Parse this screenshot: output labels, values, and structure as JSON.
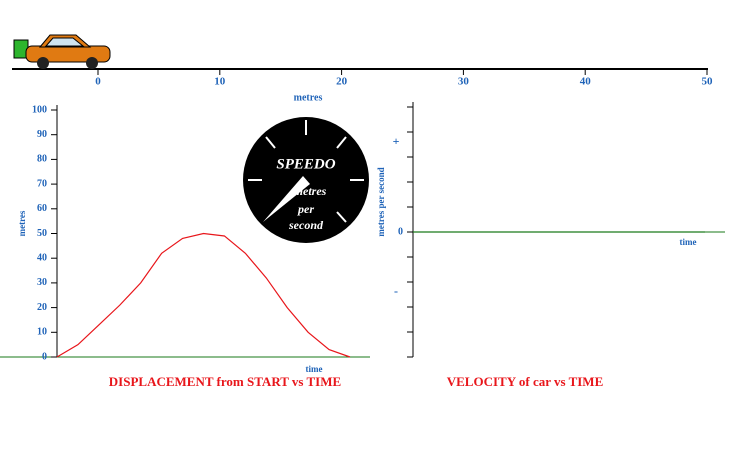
{
  "ruler": {
    "ticks": [
      0,
      10,
      20,
      30,
      40,
      50
    ],
    "axis_label": "metres",
    "car_position": 0
  },
  "speedo": {
    "title": "SPEEDO",
    "unit_lines": [
      "metres",
      "per",
      "second"
    ]
  },
  "chart_data": [
    {
      "type": "line",
      "title": "DISPLACEMENT from START vs TIME",
      "x_label": "time",
      "y_label": "metres",
      "categories": [
        null,
        null,
        null,
        null,
        null,
        null,
        null,
        null,
        null,
        null,
        null,
        null,
        null,
        null,
        null
      ],
      "values": [
        0,
        5,
        13,
        21,
        30,
        42,
        48,
        50,
        49,
        42,
        32,
        20,
        10,
        3,
        0
      ],
      "color": "#e8161b",
      "ylim": [
        0,
        100
      ],
      "yticks": [
        0,
        10,
        20,
        30,
        40,
        50,
        60,
        70,
        80,
        90,
        100
      ]
    },
    {
      "type": "line",
      "title": "VELOCITY of car vs TIME",
      "x_label": "time",
      "y_label": "metres per second",
      "plus_label": "+",
      "minus_label": "-",
      "categories": [
        null,
        null,
        null,
        null,
        null,
        null,
        null,
        null,
        null,
        null,
        null,
        null,
        null,
        null,
        null
      ],
      "values": [
        0,
        0,
        0,
        0,
        0,
        0,
        0,
        0,
        0,
        0,
        0,
        0,
        0,
        0,
        0
      ],
      "color": "#1a7a1a",
      "ylim": [
        -5,
        5
      ],
      "yticks": [
        0
      ],
      "minor_yticks": [
        -5,
        -4,
        -3,
        -2,
        -1,
        1,
        2,
        3,
        4,
        5
      ]
    }
  ]
}
